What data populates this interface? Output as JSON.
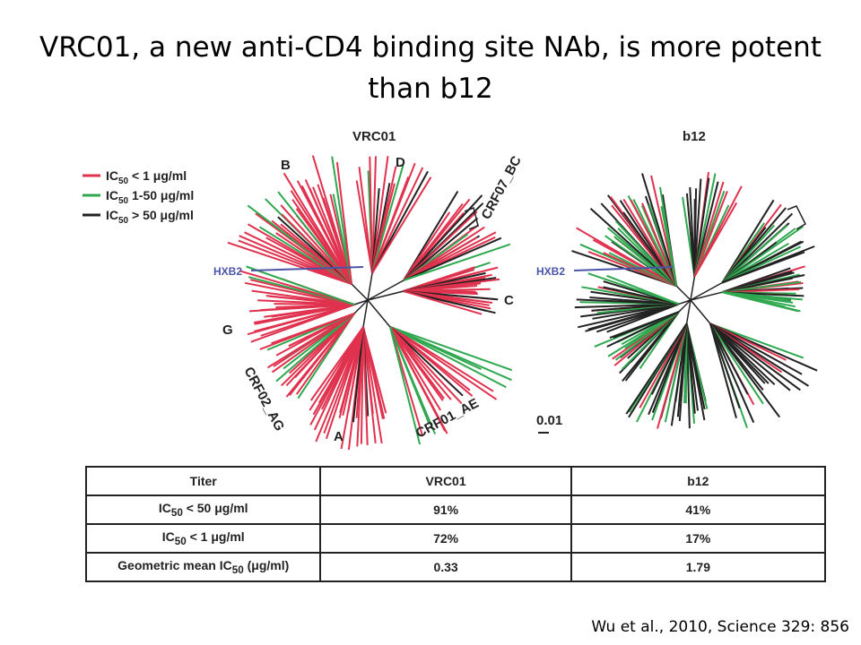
{
  "slide": {
    "title": "VRC01, a new anti-CD4 binding site NAb, is more potent than b12",
    "citation": "Wu et al., 2010, Science 329: 856"
  },
  "figure": {
    "trees": [
      {
        "title": "VRC01",
        "clade_labels": [
          "B",
          "D",
          "CRF07_BC",
          "C",
          "CRF01_AE",
          "A",
          "CRF02_AG",
          "G",
          "HXB2"
        ]
      },
      {
        "title": "b12",
        "clade_labels": [
          "HXB2"
        ],
        "scale": "0.01"
      }
    ],
    "legend": [
      {
        "prefix": "IC",
        "sub": "50",
        "text": " < 1 μg/ml",
        "color": "#e0324e"
      },
      {
        "prefix": "IC",
        "sub": "50",
        "text": " 1-50 μg/ml",
        "color": "#2fa84f"
      },
      {
        "prefix": "IC",
        "sub": "50",
        "text": " > 50 μg/ml",
        "color": "#222222"
      }
    ],
    "colors": {
      "red": "#e0324e",
      "green": "#2fa84f",
      "black": "#222222",
      "hxb2": "#4b55a8"
    }
  },
  "table": {
    "headers": [
      "Titer",
      "VRC01",
      "b12"
    ],
    "rows": [
      {
        "label_prefix": "IC",
        "label_sub": "50",
        "label_suffix": " < 50 μg/ml",
        "vrc01": "91%",
        "b12": "41%"
      },
      {
        "label_prefix": "IC",
        "label_sub": "50",
        "label_suffix": " < 1 μg/ml",
        "vrc01": "72%",
        "b12": "17%"
      },
      {
        "label_prefix": "Geometric mean IC",
        "label_sub": "50",
        "label_suffix": " (μg/ml)",
        "vrc01": "0.33",
        "b12": "1.79"
      }
    ]
  }
}
